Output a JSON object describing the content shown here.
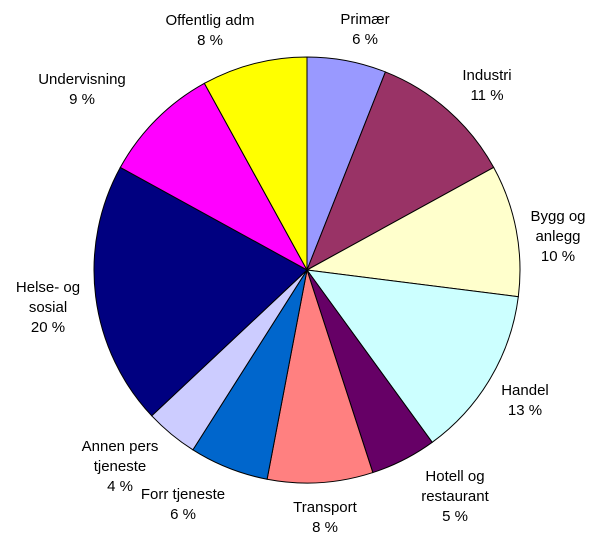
{
  "chart_data": {
    "type": "pie",
    "categories": [
      "Primær",
      "Industri",
      "Bygg og anlegg",
      "Handel",
      "Hotell og restaurant",
      "Transport",
      "Forr tjeneste",
      "Annen pers tjeneste",
      "Helse- og sosial",
      "Undervisning",
      "Offentlig adm"
    ],
    "values": [
      6,
      11,
      10,
      13,
      5,
      8,
      6,
      4,
      20,
      9,
      8
    ],
    "value_labels": [
      "6 %",
      "11 %",
      "10 %",
      "13 %",
      "5 %",
      "8 %",
      "6 %",
      "4 %",
      "20 %",
      "9 %",
      "8 %"
    ],
    "colors": [
      "#9999ff",
      "#993366",
      "#ffffcc",
      "#ccffff",
      "#660066",
      "#ff8080",
      "#0066cc",
      "#ccccff",
      "#000080",
      "#ff00ff",
      "#ffff00"
    ]
  }
}
